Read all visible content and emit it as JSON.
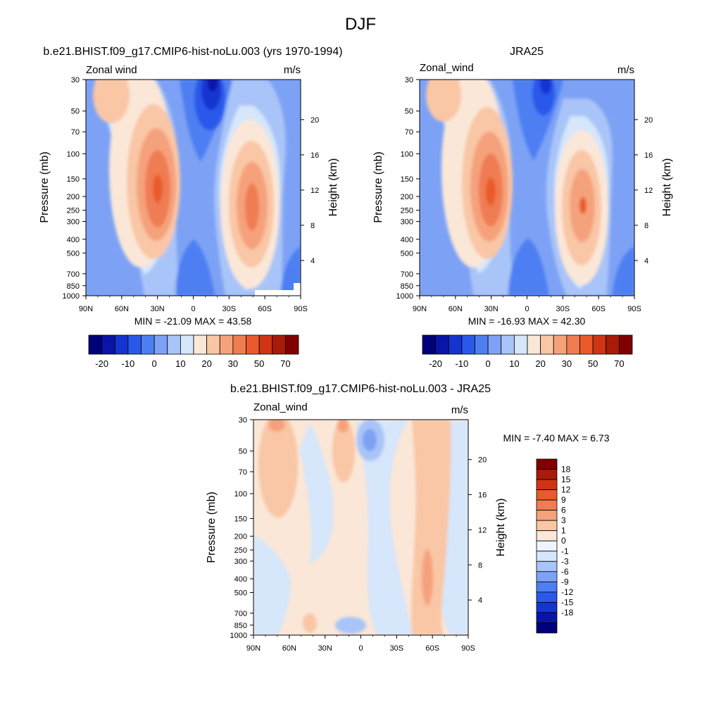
{
  "figure_title": "DJF",
  "colors": {
    "main_scale": [
      "#00007a",
      "#0a14a8",
      "#1434d0",
      "#2a58ea",
      "#4e7ff2",
      "#7da2f5",
      "#a9c4f8",
      "#d6e6fb",
      "#fbe7d7",
      "#f9c6a6",
      "#f5a27b",
      "#f07c52",
      "#ea5a2c",
      "#cf3514",
      "#a81b08",
      "#800000"
    ],
    "diff_scale": [
      "#800000",
      "#a81b08",
      "#cf3514",
      "#ea5a2c",
      "#f07c52",
      "#f5a27b",
      "#f9c6a6",
      "#fbe7d7",
      "#eef4fd",
      "#d6e6fb",
      "#a9c4f8",
      "#7da2f5",
      "#4e7ff2",
      "#2a58ea",
      "#1434d0",
      "#0a14a8",
      "#00007a"
    ]
  },
  "chart_data": [
    {
      "type": "heatmap",
      "title": "b.e21.BHIST.f09_g17.CMIP6-hist-noLu.003 (yrs 1970-1994)",
      "left_label": "Zonal wind",
      "right_label": "m/s",
      "xlabel": "",
      "ylabel": "Pressure (mb)",
      "ylabel_right": "Height (km)",
      "x_ticks": [
        "90N",
        "60N",
        "30N",
        "0",
        "30S",
        "60S",
        "90S"
      ],
      "y_ticks": [
        "30",
        "50",
        "70",
        "100",
        "150",
        "200",
        "250",
        "300",
        "400",
        "500",
        "700",
        "850",
        "1000"
      ],
      "y_ticks_right": [
        "20",
        "16",
        "12",
        "8",
        "4"
      ],
      "stats": "MIN = -21.09  MAX =  43.58",
      "colorbar_labels": [
        "-20",
        "-10",
        "0",
        "10",
        "20",
        "30",
        "50",
        "70"
      ],
      "features": [
        {
          "lat": 30,
          "p": 200,
          "value": 43
        },
        {
          "lat": -48,
          "p": 250,
          "value": 38
        },
        {
          "lat": -18,
          "p": 30,
          "value": -21
        }
      ]
    },
    {
      "type": "heatmap",
      "title": "JRA25",
      "left_label": "Zonal_wind",
      "right_label": "m/s",
      "xlabel": "",
      "ylabel": "Pressure (mb)",
      "ylabel_right": "Height (km)",
      "x_ticks": [
        "90N",
        "60N",
        "30N",
        "0",
        "30S",
        "60S",
        "90S"
      ],
      "y_ticks": [
        "30",
        "50",
        "70",
        "100",
        "150",
        "200",
        "250",
        "300",
        "400",
        "500",
        "700",
        "850",
        "1000"
      ],
      "y_ticks_right": [
        "20",
        "16",
        "12",
        "8",
        "4"
      ],
      "stats": "MIN = -16.93  MAX =  42.30",
      "colorbar_labels": [
        "-20",
        "-10",
        "0",
        "10",
        "20",
        "30",
        "50",
        "70"
      ],
      "features": [
        {
          "lat": 30,
          "p": 200,
          "value": 42
        },
        {
          "lat": -45,
          "p": 230,
          "value": 35
        },
        {
          "lat": -15,
          "p": 30,
          "value": -17
        }
      ]
    },
    {
      "type": "heatmap",
      "title": "b.e21.BHIST.f09_g17.CMIP6-hist-noLu.003 - JRA25",
      "left_label": "Zonal_wind",
      "right_label": "m/s",
      "xlabel": "",
      "ylabel": "Pressure (mb)",
      "ylabel_right": "Height (km)",
      "x_ticks": [
        "90N",
        "60N",
        "30N",
        "0",
        "30S",
        "60S",
        "90S"
      ],
      "y_ticks": [
        "30",
        "50",
        "70",
        "100",
        "150",
        "200",
        "250",
        "300",
        "400",
        "500",
        "700",
        "850",
        "1000"
      ],
      "y_ticks_right": [
        "20",
        "16",
        "12",
        "8",
        "4"
      ],
      "stats": "MIN =  -7.40  MAX =   6.73",
      "colorbar_labels": [
        "18",
        "15",
        "12",
        "9",
        "6",
        "3",
        "1",
        "0",
        "-1",
        "-3",
        "-6",
        "-9",
        "-12",
        "-15",
        "-18"
      ],
      "features": [
        {
          "lat": -55,
          "p": 200,
          "value": 6.7
        },
        {
          "lat": 70,
          "p": 30,
          "value": 6
        },
        {
          "lat": 0,
          "p": 50,
          "value": -7.4
        }
      ]
    }
  ]
}
